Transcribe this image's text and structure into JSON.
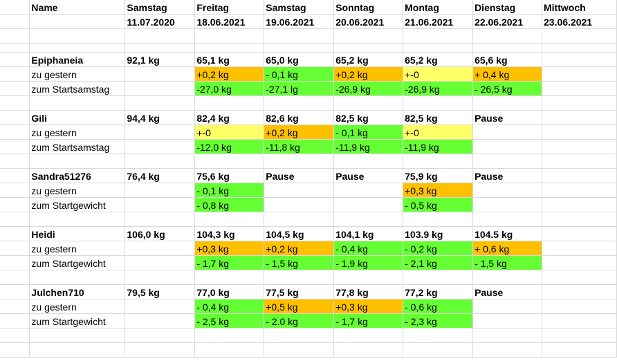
{
  "header": {
    "name_label": "Name",
    "columns": [
      {
        "day": "Samstag",
        "date": "11.07.2020"
      },
      {
        "day": "Freitag",
        "date": "18.06.2021"
      },
      {
        "day": "Samstag",
        "date": "19.06.2021"
      },
      {
        "day": "Sonntag",
        "date": "20.06.2021"
      },
      {
        "day": "Montag",
        "date": "21.06.2021"
      },
      {
        "day": "Dienstag",
        "date": "22.06.2021"
      },
      {
        "day": "Mittwoch",
        "date": "23.06.2021"
      }
    ]
  },
  "colors": {
    "green": "#66ff33",
    "orange": "#ffc000",
    "yellow": "#ffff66"
  },
  "people": [
    {
      "name": "Epiphaneia",
      "weights": [
        "92,1 kg",
        "65,1 kg",
        "65,0 kg",
        "65,2 kg",
        "65,2 kg",
        "65,6 kg",
        ""
      ],
      "rows": [
        {
          "label": "zu gestern",
          "cells": [
            {
              "v": "",
              "c": ""
            },
            {
              "v": "+0,2 kg",
              "c": "orange"
            },
            {
              "v": "- 0,1 kg",
              "c": "green"
            },
            {
              "v": "+0,2 kg",
              "c": "orange"
            },
            {
              "v": "+-0",
              "c": "yellow"
            },
            {
              "v": "+ 0,4 kg",
              "c": "orange"
            },
            {
              "v": "",
              "c": ""
            }
          ]
        },
        {
          "label": "zum Startsamstag",
          "cells": [
            {
              "v": "",
              "c": ""
            },
            {
              "v": "-27,0 kg",
              "c": "green"
            },
            {
              "v": "-27,1 lg",
              "c": "green"
            },
            {
              "v": "-26,9 kg",
              "c": "green"
            },
            {
              "v": "-26,9 kg",
              "c": "green"
            },
            {
              "v": "- 26,5 kg",
              "c": "green"
            },
            {
              "v": "",
              "c": ""
            }
          ]
        }
      ]
    },
    {
      "name": "Gili",
      "weights": [
        "94,4 kg",
        "82,4 kg",
        "82,6 kg",
        "82,5 kg",
        "82,5 kg",
        "Pause",
        ""
      ],
      "rows": [
        {
          "label": "zu gestern",
          "cells": [
            {
              "v": "",
              "c": ""
            },
            {
              "v": "+-0",
              "c": "yellow"
            },
            {
              "v": "+0,2 kg",
              "c": "orange"
            },
            {
              "v": "- 0,1 kg",
              "c": "green"
            },
            {
              "v": "+-0",
              "c": "yellow"
            },
            {
              "v": "",
              "c": ""
            },
            {
              "v": "",
              "c": ""
            }
          ]
        },
        {
          "label": "zum Startsamstag",
          "cells": [
            {
              "v": "",
              "c": ""
            },
            {
              "v": "-12,0 kg",
              "c": "green"
            },
            {
              "v": "-11,8 kg",
              "c": "green"
            },
            {
              "v": "-11,9 kg",
              "c": "green"
            },
            {
              "v": "-11,9 kg",
              "c": "green"
            },
            {
              "v": "",
              "c": ""
            },
            {
              "v": "",
              "c": ""
            }
          ]
        }
      ]
    },
    {
      "name": "Sandra51276",
      "weights": [
        "76,4 kg",
        "75,6 kg",
        "Pause",
        "Pause",
        "75,9 kg",
        "Pause",
        ""
      ],
      "rows": [
        {
          "label": "zu gestern",
          "cells": [
            {
              "v": "",
              "c": ""
            },
            {
              "v": "- 0,1 kg",
              "c": "green"
            },
            {
              "v": "",
              "c": ""
            },
            {
              "v": "",
              "c": ""
            },
            {
              "v": "+0,3 kg",
              "c": "orange"
            },
            {
              "v": "",
              "c": ""
            },
            {
              "v": "",
              "c": ""
            }
          ]
        },
        {
          "label": "zum Startgewicht",
          "cells": [
            {
              "v": "",
              "c": ""
            },
            {
              "v": "- 0,8 kg",
              "c": "green"
            },
            {
              "v": "",
              "c": ""
            },
            {
              "v": "",
              "c": ""
            },
            {
              "v": "- 0,5 kg",
              "c": "green"
            },
            {
              "v": "",
              "c": ""
            },
            {
              "v": "",
              "c": ""
            }
          ]
        }
      ]
    },
    {
      "name": "Heidi",
      "weights": [
        "106,0 kg",
        "104,3 kg",
        "104,5 kg",
        "104,1 kg",
        "103.9 kg",
        "104.5 kg",
        ""
      ],
      "rows": [
        {
          "label": "zu gestern",
          "cells": [
            {
              "v": "",
              "c": ""
            },
            {
              "v": "+0,3 kg",
              "c": "orange"
            },
            {
              "v": "+0,2 kg",
              "c": "orange"
            },
            {
              "v": "- 0,4 kg",
              "c": "green"
            },
            {
              "v": "- 0,2 kg",
              "c": "green"
            },
            {
              "v": "+ 0,6 kg",
              "c": "orange"
            },
            {
              "v": "",
              "c": ""
            }
          ]
        },
        {
          "label": "zum Startgewicht",
          "cells": [
            {
              "v": "",
              "c": ""
            },
            {
              "v": "- 1,7 kg",
              "c": "green"
            },
            {
              "v": "- 1,5 kg",
              "c": "green"
            },
            {
              "v": "- 1,9 kg",
              "c": "green"
            },
            {
              "v": "- 2,1 kg",
              "c": "green"
            },
            {
              "v": "- 1,5 kg",
              "c": "green"
            },
            {
              "v": "",
              "c": ""
            }
          ]
        }
      ]
    },
    {
      "name": "Julchen710",
      "weights": [
        "79,5 kg",
        "77,0 kg",
        "77,5 kg",
        "77,8 kg",
        "77,2 kg",
        "Pause",
        ""
      ],
      "rows": [
        {
          "label": "zu gestern",
          "cells": [
            {
              "v": "",
              "c": ""
            },
            {
              "v": "- 0,4 kg",
              "c": "green"
            },
            {
              "v": "+0,5 kg",
              "c": "orange"
            },
            {
              "v": "+0,3 kg",
              "c": "orange"
            },
            {
              "v": "- 0,6 kg",
              "c": "green"
            },
            {
              "v": "",
              "c": ""
            },
            {
              "v": "",
              "c": ""
            }
          ]
        },
        {
          "label": "zum Startgewicht",
          "cells": [
            {
              "v": "",
              "c": ""
            },
            {
              "v": "- 2,5 kg",
              "c": "green"
            },
            {
              "v": "- 2.0 kg",
              "c": "green"
            },
            {
              "v": "- 1,7 kg",
              "c": "green"
            },
            {
              "v": "- 2,3 kg",
              "c": "green"
            },
            {
              "v": "",
              "c": ""
            },
            {
              "v": "",
              "c": ""
            }
          ]
        }
      ]
    }
  ]
}
